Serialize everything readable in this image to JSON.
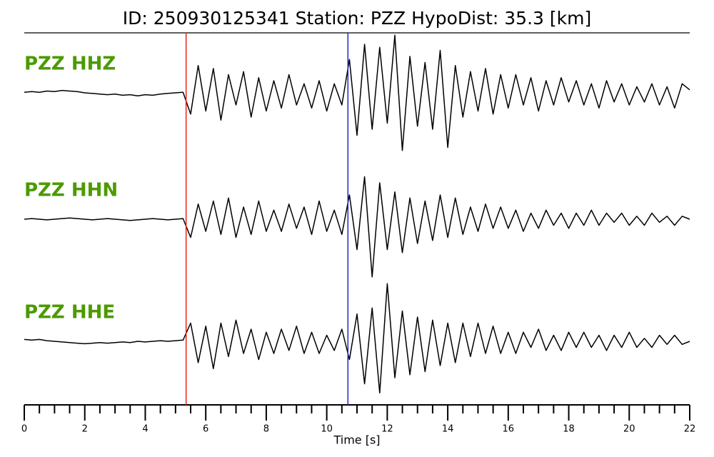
{
  "chart_data": {
    "type": "line",
    "title": "ID: 250930125341   Station: PZZ   HypoDist:    35.3 [km]",
    "xlabel": "Time [s]",
    "xlim": [
      0,
      22
    ],
    "xticks": [
      0,
      2,
      4,
      6,
      8,
      10,
      12,
      14,
      16,
      18,
      20,
      22
    ],
    "xminorticks": [
      0.5,
      1,
      1.5,
      2.5,
      3,
      3.5,
      4.5,
      5,
      5.5,
      6.5,
      7,
      7.5,
      8.5,
      9,
      9.5,
      10.5,
      11,
      11.5,
      12.5,
      13,
      13.5,
      14.5,
      15,
      15.5,
      16.5,
      17,
      17.5,
      18.5,
      19,
      19.5,
      20.5,
      21,
      21.5
    ],
    "ylim": [
      -1,
      1
    ],
    "label_color": "#4c9a00",
    "vlines": [
      {
        "x": 5.35,
        "color": "#e8231a"
      },
      {
        "x": 10.7,
        "color": "#1f2ccc"
      }
    ],
    "x": [
      0,
      0.25,
      0.5,
      0.75,
      1,
      1.25,
      1.5,
      1.75,
      2,
      2.25,
      2.5,
      2.75,
      3,
      3.25,
      3.5,
      3.75,
      4,
      4.25,
      4.5,
      4.75,
      5,
      5.25,
      5.5,
      5.75,
      6,
      6.25,
      6.5,
      6.75,
      7,
      7.25,
      7.5,
      7.75,
      8,
      8.25,
      8.5,
      8.75,
      9,
      9.25,
      9.5,
      9.75,
      10,
      10.25,
      10.5,
      10.75,
      11,
      11.25,
      11.5,
      11.75,
      12,
      12.25,
      12.5,
      12.75,
      13,
      13.25,
      13.5,
      13.75,
      14,
      14.25,
      14.5,
      14.75,
      15,
      15.25,
      15.5,
      15.75,
      16,
      16.25,
      16.5,
      16.75,
      17,
      17.25,
      17.5,
      17.75,
      18,
      18.25,
      18.5,
      18.75,
      19,
      19.25,
      19.5,
      19.75,
      20,
      20.25,
      20.5,
      20.75,
      21,
      21.25,
      21.5,
      21.75,
      22
    ],
    "series": [
      {
        "name": "PZZ HHZ",
        "color": "#000000",
        "values": [
          0.01,
          0.02,
          0.01,
          0.03,
          0.02,
          0.04,
          0.03,
          0.02,
          0.0,
          -0.01,
          -0.02,
          -0.03,
          -0.02,
          -0.04,
          -0.03,
          -0.05,
          -0.03,
          -0.04,
          -0.02,
          -0.01,
          0.0,
          0.01,
          -0.35,
          0.45,
          -0.3,
          0.4,
          -0.45,
          0.3,
          -0.2,
          0.35,
          -0.4,
          0.25,
          -0.3,
          0.2,
          -0.25,
          0.3,
          -0.2,
          0.15,
          -0.25,
          0.2,
          -0.3,
          0.15,
          -0.2,
          0.55,
          -0.7,
          0.8,
          -0.6,
          0.75,
          -0.5,
          0.95,
          -0.95,
          0.6,
          -0.55,
          0.5,
          -0.6,
          0.7,
          -0.9,
          0.45,
          -0.4,
          0.35,
          -0.3,
          0.4,
          -0.35,
          0.3,
          -0.25,
          0.3,
          -0.2,
          0.25,
          -0.3,
          0.2,
          -0.2,
          0.25,
          -0.15,
          0.2,
          -0.2,
          0.15,
          -0.25,
          0.2,
          -0.15,
          0.15,
          -0.2,
          0.1,
          -0.15,
          0.15,
          -0.2,
          0.1,
          -0.25,
          0.15,
          0.05
        ]
      },
      {
        "name": "PZZ HHN",
        "color": "#000000",
        "values": [
          0.0,
          0.01,
          0.0,
          -0.01,
          0.0,
          0.01,
          0.02,
          0.01,
          0.0,
          -0.01,
          0.0,
          0.01,
          0.0,
          -0.01,
          -0.02,
          -0.01,
          0.0,
          0.01,
          0.0,
          -0.01,
          0.0,
          0.01,
          -0.3,
          0.25,
          -0.2,
          0.3,
          -0.25,
          0.35,
          -0.3,
          0.2,
          -0.25,
          0.3,
          -0.2,
          0.15,
          -0.2,
          0.25,
          -0.15,
          0.2,
          -0.25,
          0.3,
          -0.2,
          0.15,
          -0.25,
          0.4,
          -0.5,
          0.7,
          -0.95,
          0.6,
          -0.5,
          0.45,
          -0.55,
          0.35,
          -0.4,
          0.3,
          -0.35,
          0.4,
          -0.3,
          0.35,
          -0.25,
          0.2,
          -0.2,
          0.25,
          -0.15,
          0.2,
          -0.15,
          0.15,
          -0.2,
          0.1,
          -0.15,
          0.15,
          -0.1,
          0.1,
          -0.15,
          0.1,
          -0.1,
          0.15,
          -0.1,
          0.1,
          -0.05,
          0.1,
          -0.1,
          0.05,
          -0.1,
          0.1,
          -0.05,
          0.05,
          -0.1,
          0.05,
          0.0
        ]
      },
      {
        "name": "PZZ HHE",
        "color": "#000000",
        "values": [
          0.03,
          0.02,
          0.03,
          0.01,
          0.0,
          -0.01,
          -0.02,
          -0.03,
          -0.04,
          -0.03,
          -0.02,
          -0.03,
          -0.02,
          -0.01,
          -0.02,
          0.0,
          -0.01,
          0.0,
          0.01,
          0.0,
          0.01,
          0.02,
          0.3,
          -0.35,
          0.25,
          -0.45,
          0.3,
          -0.25,
          0.35,
          -0.2,
          0.2,
          -0.3,
          0.15,
          -0.2,
          0.2,
          -0.15,
          0.25,
          -0.2,
          0.15,
          -0.2,
          0.1,
          -0.15,
          0.2,
          -0.3,
          0.45,
          -0.7,
          0.55,
          -0.85,
          0.95,
          -0.6,
          0.5,
          -0.55,
          0.4,
          -0.5,
          0.35,
          -0.4,
          0.3,
          -0.35,
          0.3,
          -0.25,
          0.3,
          -0.2,
          0.25,
          -0.2,
          0.15,
          -0.2,
          0.15,
          -0.1,
          0.2,
          -0.15,
          0.1,
          -0.15,
          0.15,
          -0.1,
          0.15,
          -0.1,
          0.1,
          -0.15,
          0.1,
          -0.1,
          0.15,
          -0.1,
          0.05,
          -0.1,
          0.1,
          -0.05,
          0.1,
          -0.05,
          0.0
        ]
      }
    ]
  }
}
